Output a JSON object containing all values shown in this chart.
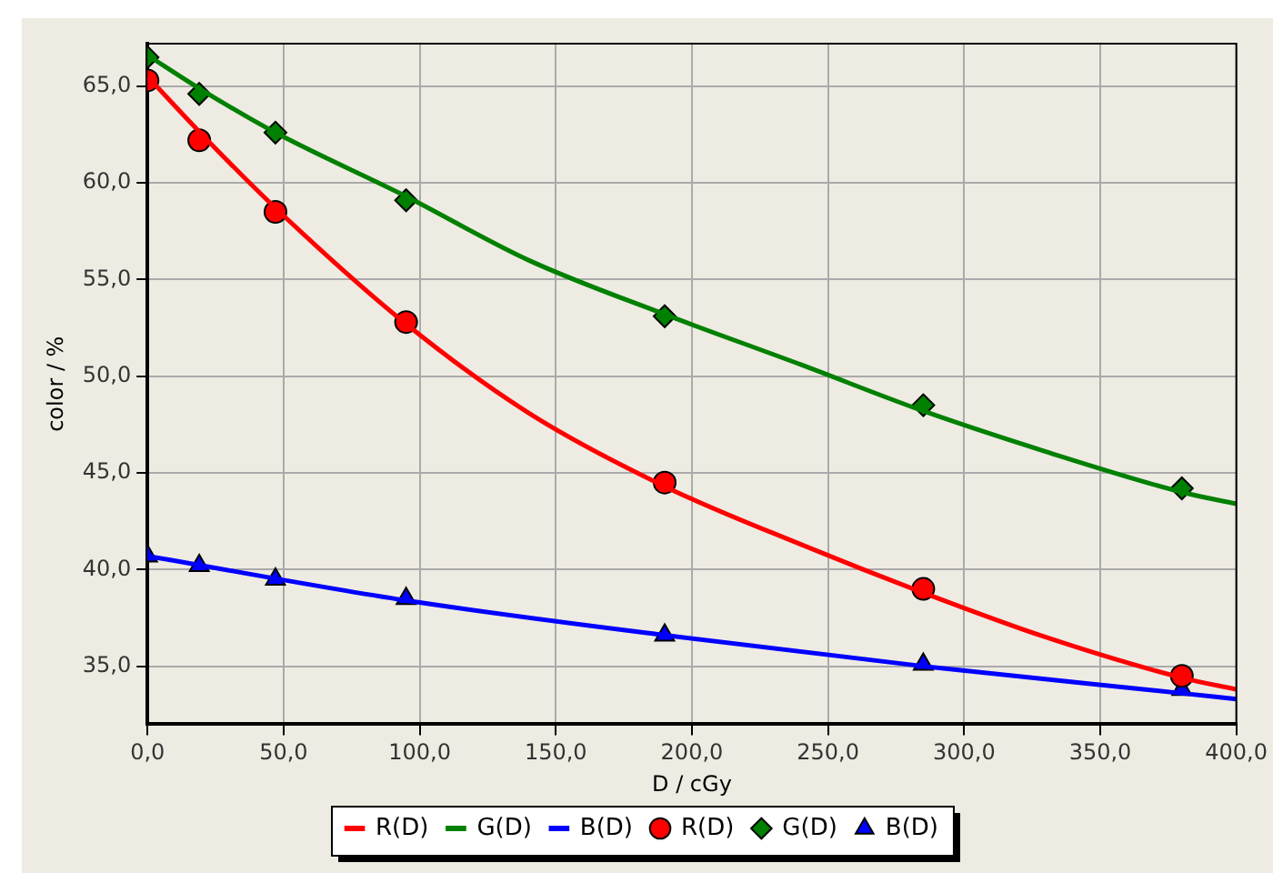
{
  "chart_data": {
    "type": "scatter",
    "xlabel": "D / cGy",
    "ylabel": "color / %",
    "xlim": [
      0,
      400
    ],
    "xticks": [
      {
        "value": 0,
        "label": "0,0"
      },
      {
        "value": 50,
        "label": "50,0"
      },
      {
        "value": 100,
        "label": "100,0"
      },
      {
        "value": 150,
        "label": "150,0"
      },
      {
        "value": 200,
        "label": "200,0"
      },
      {
        "value": 250,
        "label": "250,0"
      },
      {
        "value": 300,
        "label": "300,0"
      },
      {
        "value": 350,
        "label": "350,0"
      },
      {
        "value": 400,
        "label": "400,0"
      }
    ],
    "ylim": [
      32,
      67.2
    ],
    "yticks": [
      {
        "value": 35,
        "label": "35,0"
      },
      {
        "value": 40,
        "label": "40,0"
      },
      {
        "value": 45,
        "label": "45,0"
      },
      {
        "value": 50,
        "label": "50,0"
      },
      {
        "value": 55,
        "label": "55,0"
      },
      {
        "value": 60,
        "label": "60,0"
      },
      {
        "value": 65,
        "label": "65,0"
      }
    ],
    "grid": true,
    "legend": "bottom",
    "series": [
      {
        "name": "R(D)",
        "type": "line",
        "marker": "none",
        "color": "#ff0000",
        "x": [
          0,
          20,
          47,
          95,
          140,
          190,
          240,
          285,
          330,
          380,
          400
        ],
        "values": [
          65.5,
          62.5,
          58.7,
          52.7,
          48.1,
          44.3,
          41.3,
          38.8,
          36.5,
          34.4,
          33.8
        ]
      },
      {
        "name": "G(D)",
        "type": "line",
        "marker": "none",
        "color": "#008000",
        "x": [
          0,
          20,
          47,
          95,
          140,
          190,
          240,
          285,
          330,
          380,
          400
        ],
        "values": [
          66.6,
          64.8,
          62.6,
          59.3,
          56.0,
          53.2,
          50.6,
          48.2,
          46.1,
          44.0,
          43.4
        ]
      },
      {
        "name": "B(D)",
        "type": "line",
        "marker": "none",
        "color": "#0000ff",
        "x": [
          0,
          95,
          190,
          285,
          380,
          400
        ],
        "values": [
          40.7,
          38.4,
          36.6,
          35.0,
          33.6,
          33.3
        ]
      },
      {
        "name": "R(D)",
        "type": "scatter",
        "marker": "circle",
        "color": "#ff0000",
        "x": [
          0,
          19,
          47,
          95,
          190,
          285,
          380
        ],
        "values": [
          65.3,
          62.2,
          58.5,
          52.8,
          44.5,
          39.0,
          34.5
        ]
      },
      {
        "name": "G(D)",
        "type": "scatter",
        "marker": "diamond",
        "color": "#008000",
        "x": [
          0,
          19,
          47,
          95,
          190,
          285,
          380
        ],
        "values": [
          66.5,
          64.6,
          62.6,
          59.1,
          53.1,
          48.5,
          44.2
        ]
      },
      {
        "name": "B(D)",
        "type": "scatter",
        "marker": "triangle",
        "color": "#0000ff",
        "x": [
          0,
          19,
          47,
          95,
          190,
          285,
          380
        ],
        "values": [
          40.7,
          40.2,
          39.5,
          38.5,
          36.6,
          35.1,
          33.8
        ]
      }
    ]
  }
}
